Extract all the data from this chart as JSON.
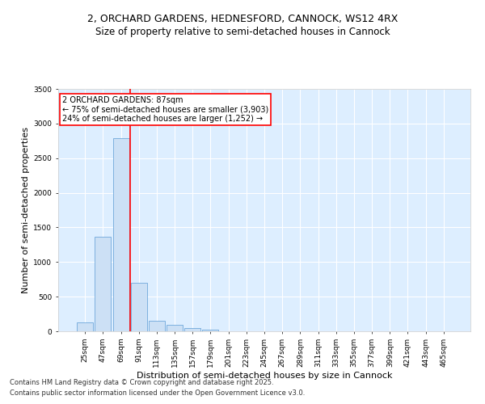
{
  "title_line1": "2, ORCHARD GARDENS, HEDNESFORD, CANNOCK, WS12 4RX",
  "title_line2": "Size of property relative to semi-detached houses in Cannock",
  "xlabel": "Distribution of semi-detached houses by size in Cannock",
  "ylabel": "Number of semi-detached properties",
  "categories": [
    "25sqm",
    "47sqm",
    "69sqm",
    "91sqm",
    "113sqm",
    "135sqm",
    "157sqm",
    "179sqm",
    "201sqm",
    "223sqm",
    "245sqm",
    "267sqm",
    "289sqm",
    "311sqm",
    "333sqm",
    "355sqm",
    "377sqm",
    "399sqm",
    "421sqm",
    "443sqm",
    "465sqm"
  ],
  "values": [
    130,
    1370,
    2790,
    700,
    155,
    90,
    45,
    25,
    5,
    0,
    0,
    0,
    0,
    0,
    0,
    0,
    0,
    0,
    0,
    0,
    0
  ],
  "bar_color": "#cce0f5",
  "bar_edge_color": "#5b9bd5",
  "vline_pos": 2.5,
  "annotation_line1": "2 ORCHARD GARDENS: 87sqm",
  "annotation_line2": "← 75% of semi-detached houses are smaller (3,903)",
  "annotation_line3": "24% of semi-detached houses are larger (1,252) →",
  "annotation_box_color": "white",
  "annotation_box_edge_color": "red",
  "vline_color": "red",
  "ylim": [
    0,
    3500
  ],
  "yticks": [
    0,
    500,
    1000,
    1500,
    2000,
    2500,
    3000,
    3500
  ],
  "background_color": "#ddeeff",
  "grid_color": "white",
  "footer_line1": "Contains HM Land Registry data © Crown copyright and database right 2025.",
  "footer_line2": "Contains public sector information licensed under the Open Government Licence v3.0.",
  "title_fontsize": 9,
  "subtitle_fontsize": 8.5,
  "axis_label_fontsize": 8,
  "tick_fontsize": 6.5,
  "footer_fontsize": 6,
  "annotation_fontsize": 7
}
